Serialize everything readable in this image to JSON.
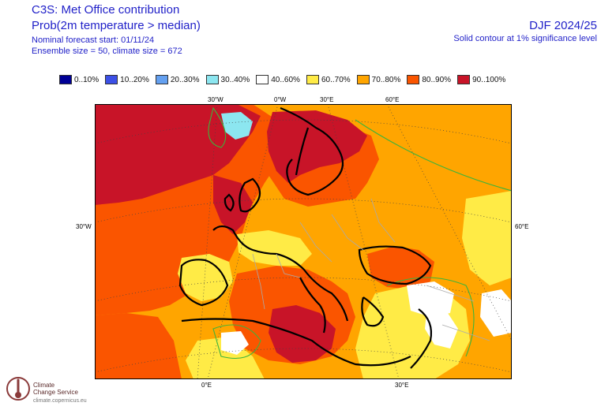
{
  "header": {
    "title": "C3S: Met Office contribution",
    "subtitle": "Prob(2m temperature > median)",
    "forecast_start": "Nominal forecast start: 01/11/24",
    "ensemble": "Ensemble size = 50, climate size = 672",
    "season": "DJF 2024/25",
    "significance_note": "Solid contour at 1% significance level"
  },
  "legend": [
    {
      "label": "0..10%",
      "color": "#000096"
    },
    {
      "label": "10..20%",
      "color": "#3c50e6"
    },
    {
      "label": "20..30%",
      "color": "#64a0f0"
    },
    {
      "label": "30..40%",
      "color": "#8ce6f0"
    },
    {
      "label": "40..60%",
      "color": "#ffffff"
    },
    {
      "label": "60..70%",
      "color": "#ffeb46"
    },
    {
      "label": "70..80%",
      "color": "#ffa500"
    },
    {
      "label": "80..90%",
      "color": "#fa5500"
    },
    {
      "label": "90..100%",
      "color": "#c81428"
    }
  ],
  "map": {
    "top_ticks": [
      "30°W",
      "0°W",
      "30°E",
      "60°E"
    ],
    "bottom_ticks": [
      "0°E",
      "30°E"
    ],
    "left_tick": "30°W",
    "right_tick": "60°E",
    "colors": {
      "c90": "#c81428",
      "c80": "#fa5500",
      "c70": "#ffa500",
      "c60": "#ffeb46",
      "c40": "#ffffff",
      "c30": "#8ce6f0",
      "sig_contour": "#3cb43c",
      "graticule": "#444444",
      "borders": "#aaaaaa"
    }
  },
  "logo": {
    "line1": "Climate",
    "line2": "Change Service",
    "url": "climate.copernicus.eu"
  }
}
